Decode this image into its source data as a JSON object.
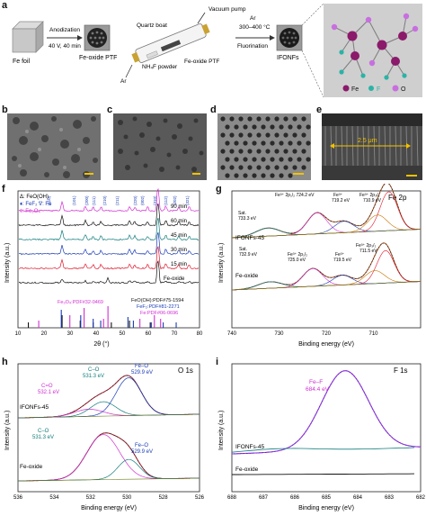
{
  "panel_labels": {
    "a": "a",
    "b": "b",
    "c": "c",
    "d": "d",
    "e": "e",
    "f": "f",
    "g": "g",
    "h": "h",
    "i": "i"
  },
  "panel_a": {
    "fe_foil": "Fe foil",
    "step1_top": "Anodization",
    "step1_bottom": "40 V, 40 min",
    "fe_oxide_ptf": "Fe-oxide PTF",
    "quartz_boat": "Quartz boat",
    "vacuum_pump": "Vacuum pump",
    "nh4f_powder": "NH₄F powder",
    "fe_oxide_ptf_2": "Fe-oxide PTF",
    "ar_inlet": "Ar",
    "step2_top": "Ar",
    "step2_mid": "300–400 °C",
    "step2_bottom": "Fluorination",
    "ifonfs": "IFONFs",
    "legend_fe": "Fe",
    "legend_f": "F",
    "legend_o": "O",
    "color_fe": "#8b1a6b",
    "color_f": "#2ab3a6",
    "color_o": "#c86fe0"
  },
  "panel_e": {
    "scale_text": "2.5 μm"
  },
  "panel_f": {
    "legend1": "Δ: FeO(OH)",
    "legend2": "♦: FeF₂  ∇: Fe",
    "legend3": "◊: Fe₃O₄",
    "curve_labels": [
      "90 min",
      "60 min",
      "45 min",
      "30 min",
      "15 min",
      "Fe-oxide"
    ],
    "peak_labels": [
      "(110)",
      "(101)",
      "(200)",
      "(111)",
      "(210)",
      "(211)",
      "(220)",
      "(002)",
      "(310)",
      "(112)",
      "(202)",
      "(321)"
    ],
    "ref1": "Fe₃O₄:PDF#32-0469",
    "ref2": "FeO(OH):PDF#75-1594",
    "ref3": "FeF₂:PDF#81-2271",
    "ref4": "Fe:PDF#06-0696",
    "xlabel": "2θ (°)",
    "ylabel": "Intensity (a.u.)",
    "xticks": [
      "10",
      "20",
      "30",
      "40",
      "50",
      "60",
      "70",
      "80"
    ]
  },
  "panel_g": {
    "title": "Fe 2p",
    "ann1": "Fe³⁺ 2p₁/₂ 724.2 eV",
    "ann2": "Fe³⁺",
    "ann2b": "719.2 eV",
    "ann3": "Fe³⁺ 2p₃/₂",
    "ann3b": "710.9 eV",
    "sat1": "Sat.",
    "sat1b": "733.3 eV",
    "ann4": "Fe³⁺ 2p₁/₂",
    "ann4b": "725.0 eV",
    "ann5": "Fe³⁺",
    "ann5b": "719.5 eV",
    "ann6": "Fe³⁺ 2p₃/₂",
    "ann6b": "711.5 eV",
    "sat2": "Sat.",
    "sat2b": "732.9 eV",
    "sample_top": "IFONFs-45",
    "sample_bottom": "Fe-oxide",
    "xlabel": "Binding energy (eV)",
    "ylabel": "Intensity (a.u.)",
    "xticks": [
      "740",
      "730",
      "720",
      "710"
    ]
  },
  "panel_h": {
    "title": "O 1s",
    "a1": "C–O",
    "a1b": "531.3 eV",
    "a2": "Fe–O",
    "a2b": "529.9 eV",
    "a3": "C=O",
    "a3b": "532.1 eV",
    "a4": "C–O",
    "a4b": "531.3 eV",
    "a5": "Fe–O",
    "a5b": "529.9 eV",
    "sample_top": "IFONFs-45",
    "sample_bottom": "Fe-oxide",
    "xlabel": "Binding energy (eV)",
    "ylabel": "Intensity (a.u.)",
    "xticks": [
      "536",
      "534",
      "532",
      "530",
      "528",
      "526"
    ]
  },
  "panel_i": {
    "title": "F 1s",
    "a1": "Fe–F",
    "a1b": "684.4 eV",
    "sample_top": "IFONFs-45",
    "sample_bottom": "Fe-oxide",
    "xlabel": "Binding energy (eV)",
    "ylabel": "Intensity (a.u.)",
    "xticks": [
      "688",
      "687",
      "686",
      "685",
      "684",
      "683",
      "682"
    ]
  }
}
